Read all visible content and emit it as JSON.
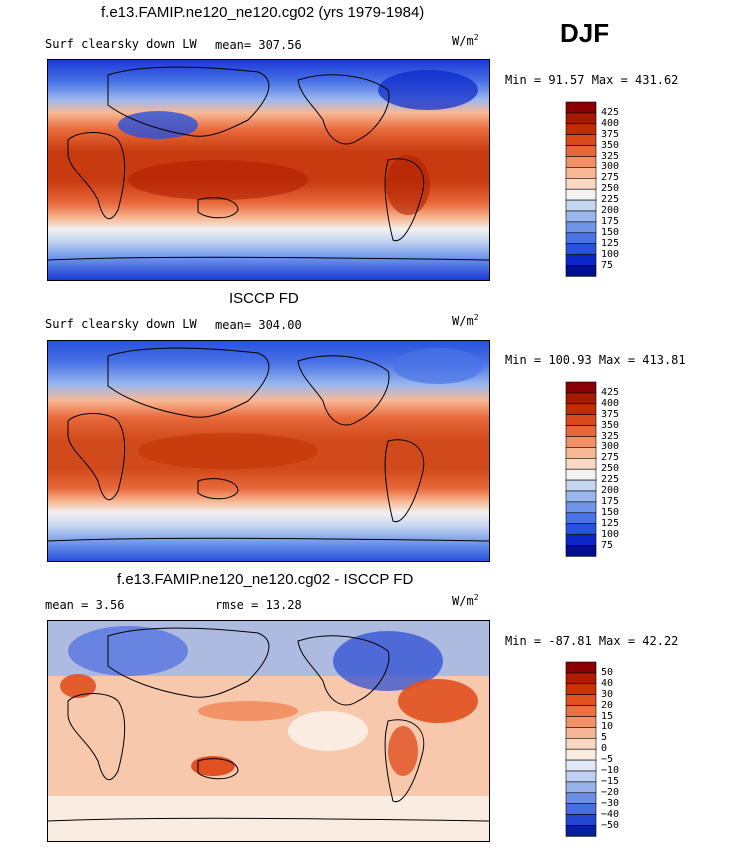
{
  "season": "DJF",
  "units": "W/m",
  "units_exp": "2",
  "panels": [
    {
      "title": "f.e13.FAMIP.ne120_ne120.cg02 (yrs 1979-1984)",
      "left_label": "Surf clearsky down LW",
      "stat_text": "mean= 307.56",
      "minmax": "Min =  91.57 Max = 431.62",
      "colorbar_labels": [
        "425",
        "400",
        "375",
        "350",
        "325",
        "300",
        "275",
        "250",
        "225",
        "200",
        "175",
        "150",
        "125",
        "100",
        "75"
      ]
    },
    {
      "title": "ISCCP FD",
      "left_label": "Surf clearsky down LW",
      "stat_text": "mean= 304.00",
      "minmax": "Min = 100.93 Max = 413.81",
      "colorbar_labels": [
        "425",
        "400",
        "375",
        "350",
        "325",
        "300",
        "275",
        "250",
        "225",
        "200",
        "175",
        "150",
        "125",
        "100",
        "75"
      ]
    },
    {
      "title": "f.e13.FAMIP.ne120_ne120.cg02 - ISCCP FD",
      "left_label": "mean =   3.56",
      "stat_text": "rmse =  13.28",
      "minmax": "Min = -87.81 Max =  42.22",
      "colorbar_labels": [
        "50",
        "40",
        "30",
        "20",
        "15",
        "10",
        "5",
        "0",
        "−5",
        "−10",
        "−15",
        "−20",
        "−30",
        "−40",
        "−50"
      ]
    }
  ],
  "colors": {
    "abs_scale": [
      "#8b0000",
      "#a61a00",
      "#c02d00",
      "#d84a1b",
      "#e8683a",
      "#f39064",
      "#f8b895",
      "#fbd9c2",
      "#f2f2f2",
      "#c7d6f0",
      "#9bb8ee",
      "#6f95ea",
      "#4a73e6",
      "#2851dc",
      "#0b27c8",
      "#000f8f"
    ],
    "diff_scale": [
      "#8b0000",
      "#b01a00",
      "#cc3200",
      "#e05020",
      "#ec7040",
      "#f29266",
      "#f6b594",
      "#fad7c3",
      "#fbece2",
      "#e2e9f8",
      "#bfd0f2",
      "#98b2ec",
      "#6f8fe6",
      "#4a6ce0",
      "#2447d3",
      "#081ea0"
    ]
  }
}
